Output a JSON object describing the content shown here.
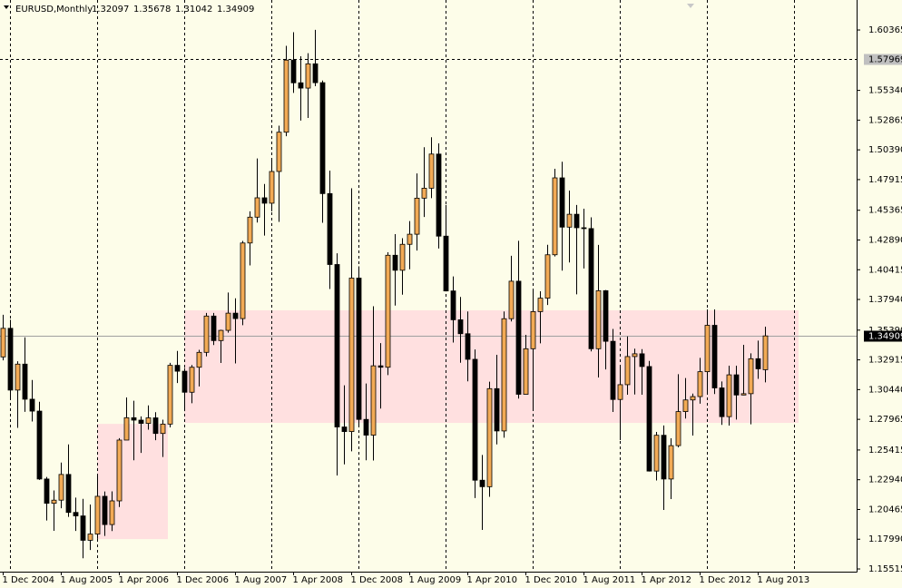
{
  "chart_data": {
    "type": "candlestick",
    "symbol": "EURUSD,Monthly",
    "categories": [
      "1 Dec 2004",
      null,
      null,
      null,
      null,
      null,
      null,
      null,
      "1 Aug 2005",
      null,
      null,
      null,
      null,
      null,
      null,
      null,
      "1 Apr 2006",
      null,
      null,
      null,
      null,
      null,
      null,
      null,
      "1 Dec 2006",
      null,
      null,
      null,
      null,
      null,
      null,
      null,
      "1 Aug 2007",
      null,
      null,
      null,
      null,
      null,
      null,
      null,
      "1 Apr 2008",
      null,
      null,
      null,
      null,
      null,
      null,
      null,
      "1 Dec 2008",
      null,
      null,
      null,
      null,
      null,
      null,
      null,
      "1 Aug 2009",
      null,
      null,
      null,
      null,
      null,
      null,
      null,
      "1 Apr 2010",
      null,
      null,
      null,
      null,
      null,
      null,
      null,
      "1 Dec 2010",
      null,
      null,
      null,
      null,
      null,
      null,
      null,
      "1 Aug 2011",
      null,
      null,
      null,
      null,
      null,
      null,
      null,
      "1 Apr 2012",
      null,
      null,
      null,
      null,
      null,
      null,
      null,
      "1 Dec 2012",
      null,
      null,
      null,
      null,
      null,
      null,
      null,
      "1 Aug 2013",
      null
    ],
    "open": [
      1.3316,
      1.3554,
      1.304,
      1.3256,
      1.2964,
      1.2865,
      1.23,
      1.2098,
      1.2124,
      1.2338,
      1.2022,
      1.1993,
      1.179,
      1.1842,
      1.2156,
      1.1921,
      1.2118,
      1.2624,
      1.281,
      1.279,
      1.2763,
      1.2809,
      1.2679,
      1.2757,
      1.3246,
      1.3197,
      1.3022,
      1.323,
      1.3354,
      1.3656,
      1.3452,
      1.3537,
      1.368,
      1.3635,
      1.4264,
      1.4479,
      1.464,
      1.4595,
      1.4859,
      1.5186,
      1.5786,
      1.5597,
      1.5553,
      1.5755,
      1.5598,
      1.4675,
      1.4085,
      1.2733,
      1.2695,
      1.3972,
      1.2796,
      1.2665,
      1.3242,
      1.323,
      1.4162,
      1.4037,
      1.4253,
      1.4337,
      1.4637,
      1.472,
      1.5004,
      1.4321,
      1.3865,
      1.3625,
      1.3509,
      1.3296,
      1.229,
      1.2236,
      1.3052,
      1.27,
      1.3634,
      1.3946,
      1.3005,
      1.3384,
      1.3693,
      1.3805,
      1.4166,
      1.4806,
      1.4396,
      1.4503,
      1.4391,
      1.4384,
      1.3384,
      1.3867,
      1.3446,
      1.2962,
      1.3085,
      1.3319,
      1.3342,
      1.3236,
      1.2366,
      1.2664,
      1.23,
      1.2578,
      1.2861,
      1.2958,
      1.2986,
      1.3193,
      1.3579,
      1.3058,
      1.2819,
      1.3167,
      1.2999,
      1.301,
      1.3301,
      1.32097
    ],
    "high": [
      1.3667,
      1.3625,
      1.328,
      1.3479,
      1.3124,
      1.2943,
      1.2317,
      1.2205,
      1.2437,
      1.2588,
      1.2145,
      1.2135,
      1.2088,
      1.2323,
      1.2196,
      1.2197,
      1.264,
      1.2979,
      1.2951,
      1.2821,
      1.2913,
      1.2856,
      1.2794,
      1.3267,
      1.3366,
      1.3223,
      1.3249,
      1.3375,
      1.3682,
      1.3682,
      1.3542,
      1.3852,
      1.3804,
      1.4281,
      1.4528,
      1.4967,
      1.4755,
      1.4966,
      1.524,
      1.5905,
      1.6018,
      1.5818,
      1.5843,
      1.6038,
      1.5616,
      1.4866,
      1.4178,
      1.308,
      1.4719,
      1.407,
      1.3095,
      1.3738,
      1.3431,
      1.4187,
      1.4338,
      1.4304,
      1.4446,
      1.4843,
      1.5061,
      1.5144,
      1.5093,
      1.458,
      1.3986,
      1.3815,
      1.3694,
      1.3378,
      1.25,
      1.311,
      1.3334,
      1.3694,
      1.4158,
      1.4282,
      1.35,
      1.3862,
      1.3862,
      1.4249,
      1.4882,
      1.494,
      1.47,
      1.458,
      1.4549,
      1.4478,
      1.4248,
      1.3873,
      1.3549,
      1.3233,
      1.3487,
      1.3385,
      1.3381,
      1.3283,
      1.2692,
      1.2746,
      1.2639,
      1.3172,
      1.314,
      1.3011,
      1.3308,
      1.3711,
      1.3711,
      1.3112,
      1.3243,
      1.3243,
      1.3417,
      1.3346,
      1.3452,
      1.35678
    ],
    "low": [
      1.3287,
      1.296,
      1.2726,
      1.2859,
      1.2779,
      1.2293,
      1.1955,
      1.1869,
      1.2057,
      1.1985,
      1.1868,
      1.164,
      1.1709,
      1.1802,
      1.1826,
      1.1867,
      1.2067,
      1.2624,
      1.2456,
      1.2517,
      1.2711,
      1.2623,
      1.2483,
      1.273,
      1.3099,
      1.2865,
      1.2931,
      1.307,
      1.332,
      1.3415,
      1.3266,
      1.3518,
      1.3262,
      1.358,
      1.4077,
      1.4434,
      1.4326,
      1.4528,
      1.444,
      1.5152,
      1.5513,
      1.5283,
      1.5304,
      1.5569,
      1.4432,
      1.3881,
      1.2329,
      1.2422,
      1.253,
      1.2745,
      1.2456,
      1.2454,
      1.2886,
      1.3165,
      1.3743,
      1.3834,
      1.4045,
      1.4201,
      1.448,
      1.4637,
      1.4218,
      1.3861,
      1.3436,
      1.3268,
      1.3113,
      1.2142,
      1.1876,
      1.2152,
      1.2588,
      1.2644,
      1.3611,
      1.2969,
      1.3003,
      1.2874,
      1.3429,
      1.3748,
      1.4152,
      1.4034,
      1.4102,
      1.3837,
      1.4052,
      1.3362,
      1.3145,
      1.3212,
      1.2858,
      1.2624,
      1.3001,
      1.3003,
      1.3001,
      1.2362,
      1.2288,
      1.2042,
      1.2133,
      1.2563,
      1.2803,
      1.2662,
      1.2927,
      1.3001,
      1.3007,
      1.275,
      1.2745,
      1.2795,
      1.2997,
      1.2755,
      1.3134,
      1.31042
    ],
    "close": [
      1.3554,
      1.304,
      1.3256,
      1.2964,
      1.2865,
      1.23,
      1.2098,
      1.2124,
      1.2338,
      1.2022,
      1.1993,
      1.179,
      1.1842,
      1.2156,
      1.1921,
      1.2118,
      1.2624,
      1.281,
      1.279,
      1.2763,
      1.2809,
      1.2679,
      1.2757,
      1.3246,
      1.3197,
      1.3022,
      1.323,
      1.3354,
      1.3656,
      1.3452,
      1.3537,
      1.368,
      1.3635,
      1.4264,
      1.4479,
      1.464,
      1.4595,
      1.4859,
      1.5186,
      1.5786,
      1.5597,
      1.5553,
      1.5755,
      1.5598,
      1.4675,
      1.4085,
      1.2733,
      1.2695,
      1.3972,
      1.2796,
      1.2665,
      1.3242,
      1.323,
      1.4162,
      1.4037,
      1.4253,
      1.4337,
      1.4637,
      1.472,
      1.5004,
      1.4321,
      1.3865,
      1.3625,
      1.3509,
      1.3296,
      1.229,
      1.2236,
      1.3052,
      1.27,
      1.3634,
      1.3946,
      1.3005,
      1.3384,
      1.3693,
      1.3805,
      1.4166,
      1.4806,
      1.4396,
      1.4503,
      1.4391,
      1.4384,
      1.3384,
      1.3867,
      1.3446,
      1.2962,
      1.3085,
      1.3319,
      1.3342,
      1.3236,
      1.2366,
      1.2664,
      1.23,
      1.2578,
      1.2861,
      1.2958,
      1.2986,
      1.3193,
      1.3579,
      1.3058,
      1.2819,
      1.3167,
      1.2999,
      1.301,
      1.3301,
      1.3217,
      1.34909
    ],
    "up_color": "#f2aa55",
    "down_color": "#000000",
    "ylim": [
      1.1529,
      1.6286
    ],
    "yticks": [
      1.60365,
      {
        "value": 1.5534,
        "label": "1.55340"
      },
      1.52865,
      {
        "value": 1.5039,
        "label": "1.50390"
      },
      1.47915,
      1.45365,
      {
        "value": 1.4289,
        "label": "1.42890"
      },
      1.40415,
      {
        "value": 1.3794,
        "label": "1.37940"
      },
      {
        "value": 1.3539,
        "label": "1.35390"
      },
      1.32915,
      {
        "value": 1.3044,
        "label": "1.30440"
      },
      1.27965,
      1.25415,
      {
        "value": 1.2294,
        "label": "1.22940"
      },
      1.20465,
      {
        "value": 1.1799,
        "label": "1.17990"
      },
      1.15515
    ],
    "hline": 1.57969,
    "zones": [
      {
        "low": 1.18,
        "high": 1.2759
      },
      {
        "low": 1.2767,
        "high": 1.3704
      }
    ],
    "zone_color": "#ffe0e0",
    "grid": true
  }
}
